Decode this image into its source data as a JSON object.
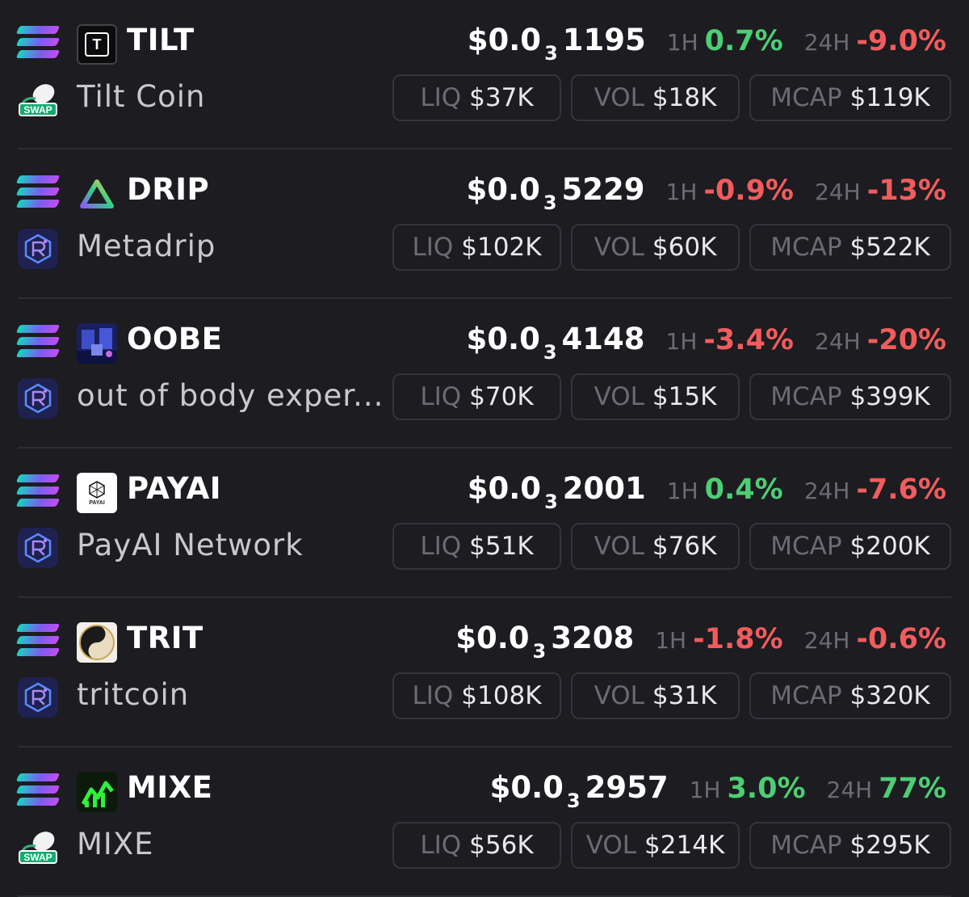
{
  "colors": {
    "positive": "#4dce74",
    "negative": "#f25c5c",
    "background": "#1c1c21"
  },
  "labels": {
    "h1": "1H",
    "h24": "24H",
    "liq": "LIQ",
    "vol": "VOL",
    "mcap": "MCAP"
  },
  "tokens": [
    {
      "symbol": "TILT",
      "name": "Tilt Coin",
      "icon": "tilt-logo-icon",
      "dex_icon": "swap-icon",
      "price_prefix": "$0.0",
      "price_sub": "3",
      "price_digits": "1195",
      "h1": "0.7%",
      "h1_dir": "positive",
      "h24": "-9.0%",
      "h24_dir": "negative",
      "liq": "$37K",
      "vol": "$18K",
      "mcap": "$119K"
    },
    {
      "symbol": "DRIP",
      "name": "Metadrip",
      "icon": "drip-triangle-icon",
      "dex_icon": "raydium-icon",
      "price_prefix": "$0.0",
      "price_sub": "3",
      "price_digits": "5229",
      "h1": "-0.9%",
      "h1_dir": "negative",
      "h24": "-13%",
      "h24_dir": "negative",
      "liq": "$102K",
      "vol": "$60K",
      "mcap": "$522K"
    },
    {
      "symbol": "OOBE",
      "name": "out of body exper...",
      "icon": "oobe-image-icon",
      "dex_icon": "raydium-icon",
      "price_prefix": "$0.0",
      "price_sub": "3",
      "price_digits": "4148",
      "h1": "-3.4%",
      "h1_dir": "negative",
      "h24": "-20%",
      "h24_dir": "negative",
      "liq": "$70K",
      "vol": "$15K",
      "mcap": "$399K"
    },
    {
      "symbol": "PAYAI",
      "name": "PayAI Network",
      "icon": "payai-logo-icon",
      "icon_text": "PAYAI",
      "dex_icon": "raydium-icon",
      "price_prefix": "$0.0",
      "price_sub": "3",
      "price_digits": "2001",
      "h1": "0.4%",
      "h1_dir": "positive",
      "h24": "-7.6%",
      "h24_dir": "negative",
      "liq": "$51K",
      "vol": "$76K",
      "mcap": "$200K"
    },
    {
      "symbol": "TRIT",
      "name": "tritcoin",
      "icon": "trit-yinyang-icon",
      "dex_icon": "raydium-icon",
      "price_prefix": "$0.0",
      "price_sub": "3",
      "price_digits": "3208",
      "h1": "-1.8%",
      "h1_dir": "negative",
      "h24": "-0.6%",
      "h24_dir": "negative",
      "liq": "$108K",
      "vol": "$31K",
      "mcap": "$320K"
    },
    {
      "symbol": "MIXE",
      "name": "MIXE",
      "icon": "mixe-chart-icon",
      "dex_icon": "swap-icon",
      "price_prefix": "$0.0",
      "price_sub": "3",
      "price_digits": "2957",
      "h1": "3.0%",
      "h1_dir": "positive",
      "h24": "77%",
      "h24_dir": "positive",
      "liq": "$56K",
      "vol": "$214K",
      "mcap": "$295K"
    }
  ]
}
